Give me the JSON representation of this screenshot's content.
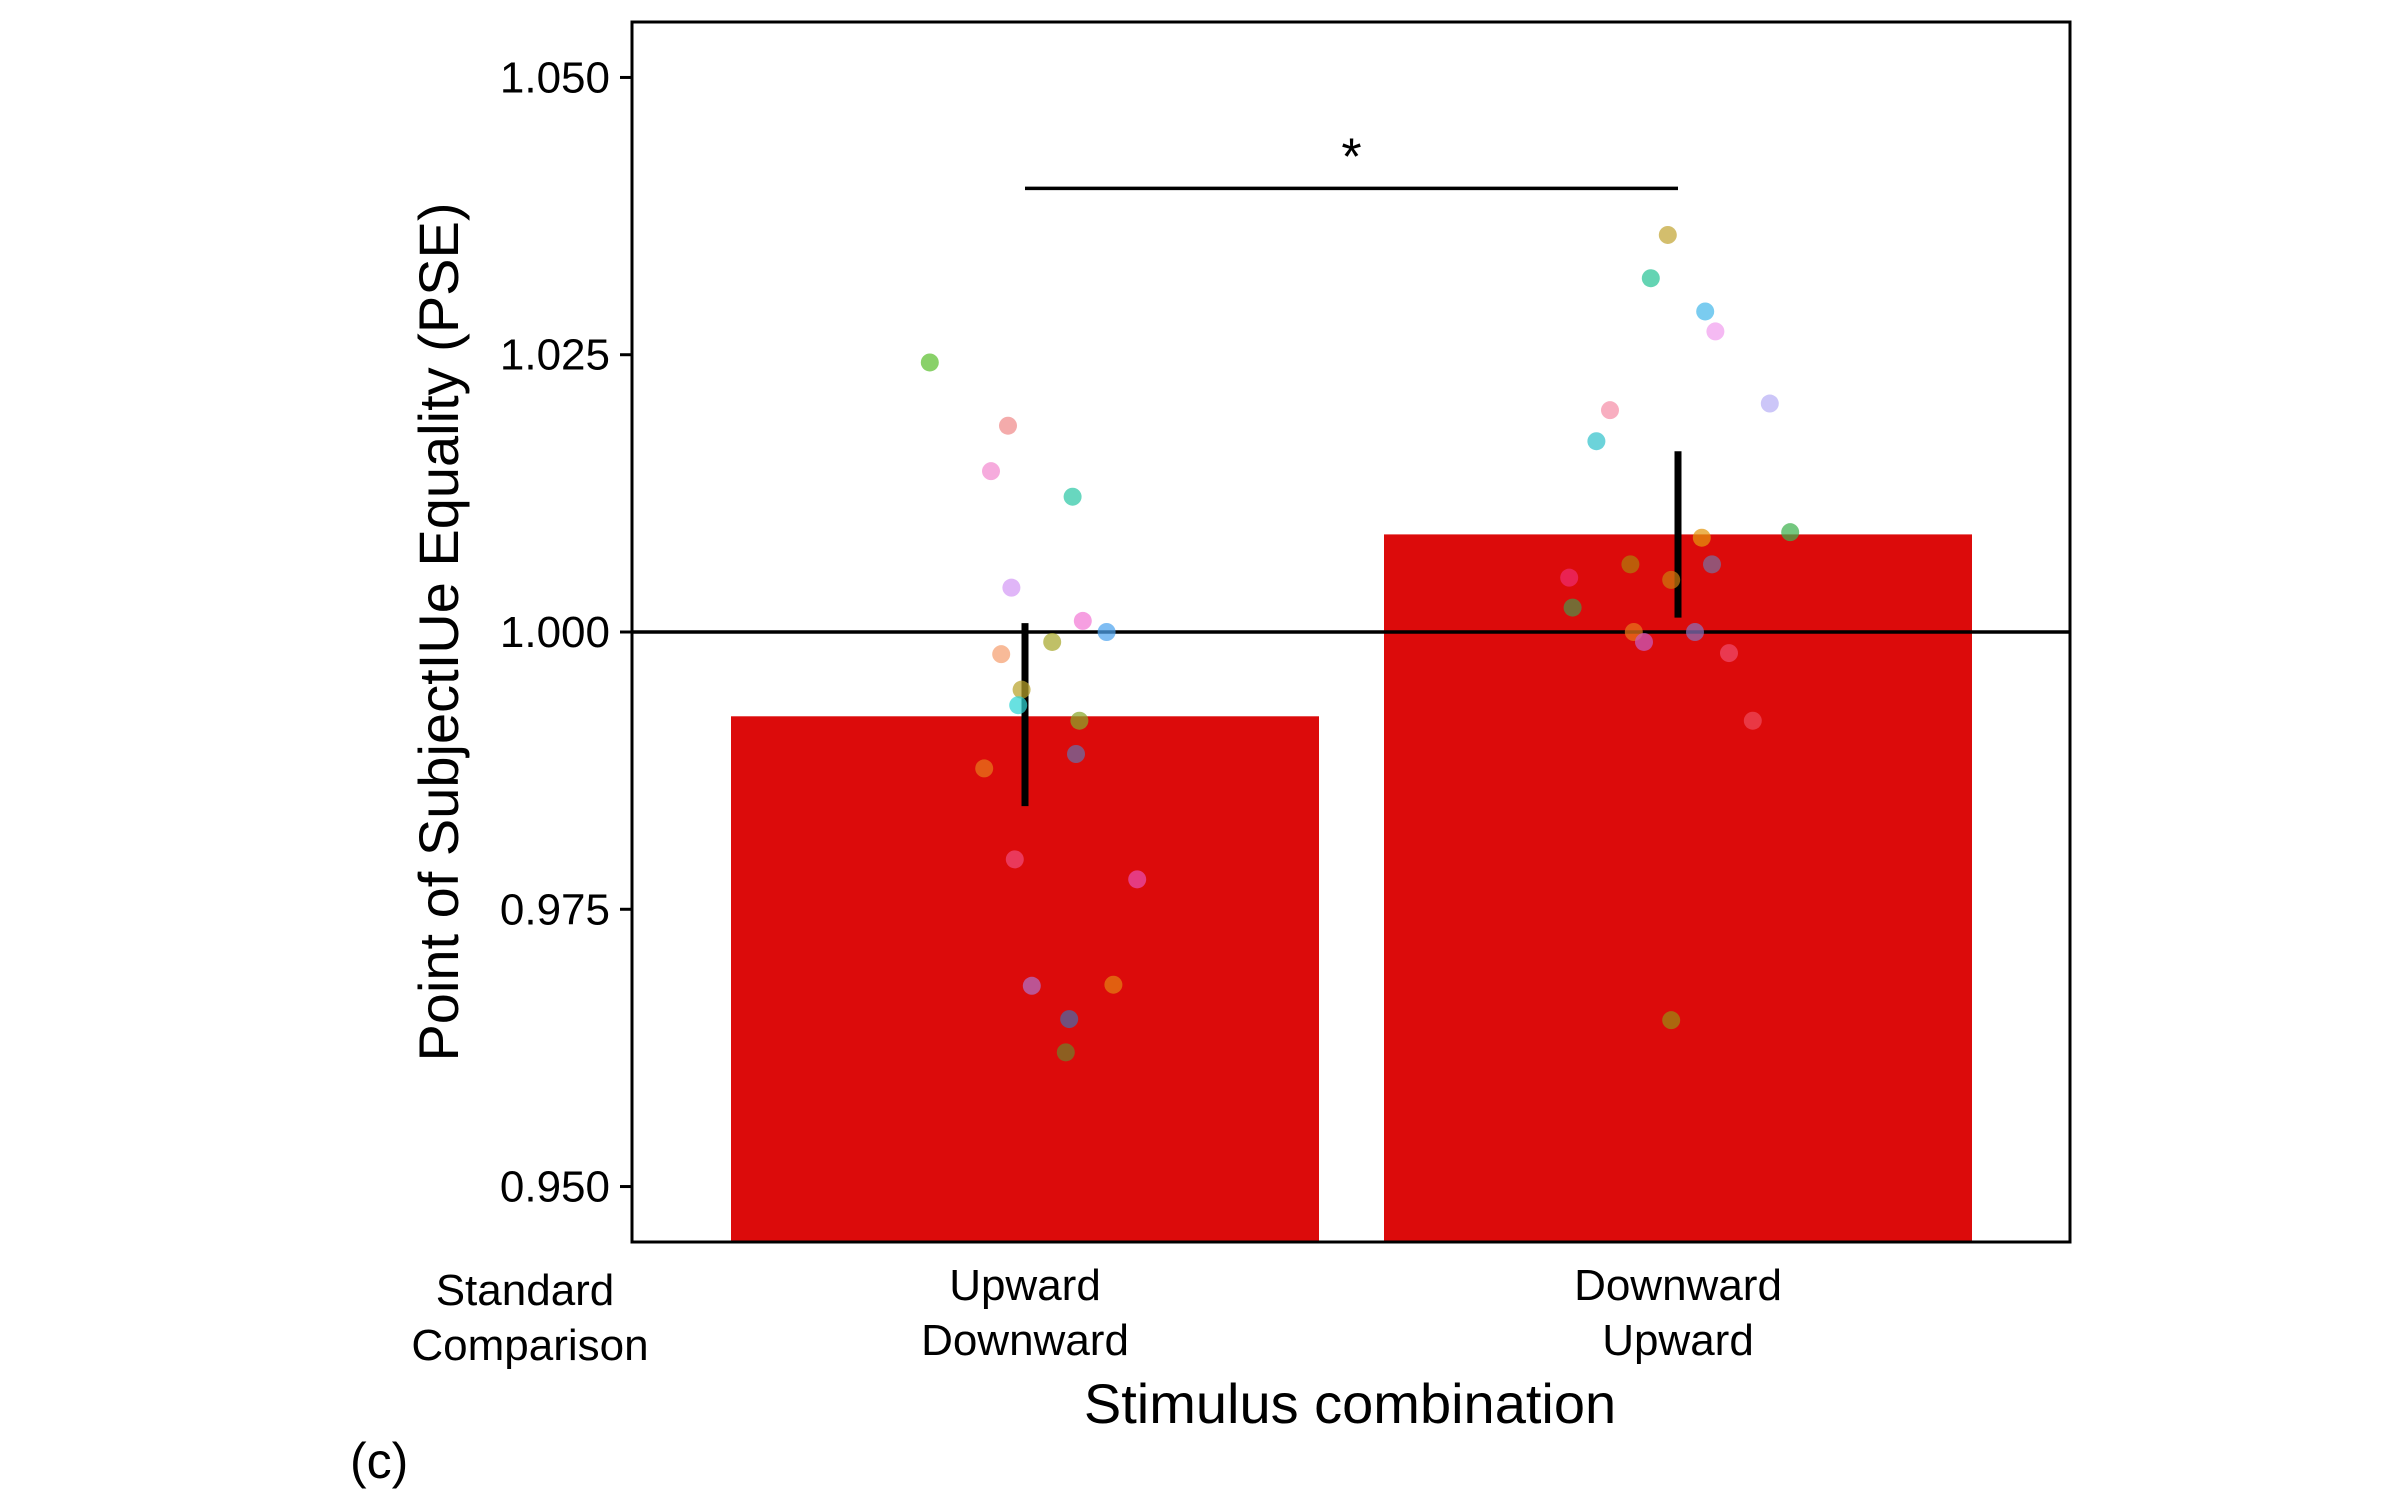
{
  "chart_data": {
    "type": "bar",
    "title": "",
    "xlabel": "Stimulus combination",
    "ylabel": "Point of SubjectIUe Equality (PSE)",
    "ylim": [
      0.945,
      1.055
    ],
    "yticks": [
      "0.950",
      "0.975",
      "1.000",
      "1.025",
      "1.050"
    ],
    "reference_line": 1.0,
    "row_labels": [
      "Standard",
      "Comparison"
    ],
    "categories": [
      {
        "line1": "Upward",
        "line2": "Downward"
      },
      {
        "line1": "Downward",
        "line2": "Upward"
      }
    ],
    "bar_color": "#dc0b0b",
    "values": [
      0.9924,
      1.0088
    ],
    "error_bars": [
      {
        "low": 0.9843,
        "high": 1.0008
      },
      {
        "low": 1.0013,
        "high": 1.0163
      }
    ],
    "significance": {
      "label": "*",
      "y": 1.04,
      "between": [
        0,
        1
      ]
    },
    "panel_label": "(c)",
    "points": [
      [
        {
          "dx": -0.28,
          "y": 1.0243,
          "color": "#5bbf2f"
        },
        {
          "dx": -0.05,
          "y": 1.0186,
          "color": "#f08a8a"
        },
        {
          "dx": -0.1,
          "y": 1.0145,
          "color": "#f38ad0"
        },
        {
          "dx": 0.14,
          "y": 1.0122,
          "color": "#2ec7a6"
        },
        {
          "dx": -0.04,
          "y": 1.004,
          "color": "#d49af5"
        },
        {
          "dx": 0.17,
          "y": 1.001,
          "color": "#f37ad6"
        },
        {
          "dx": 0.24,
          "y": 1.0,
          "color": "#4ea4ee"
        },
        {
          "dx": 0.08,
          "y": 0.9991,
          "color": "#a7a72d"
        },
        {
          "dx": -0.07,
          "y": 0.998,
          "color": "#f5a070"
        },
        {
          "dx": -0.01,
          "y": 0.9948,
          "color": "#b8a22a"
        },
        {
          "dx": -0.02,
          "y": 0.9934,
          "color": "#2ed6d6"
        },
        {
          "dx": 0.16,
          "y": 0.992,
          "color": "#89a828"
        },
        {
          "dx": 0.15,
          "y": 0.989,
          "color": "#6a6fa8"
        },
        {
          "dx": -0.12,
          "y": 0.9877,
          "color": "#e8781a"
        },
        {
          "dx": -0.03,
          "y": 0.9795,
          "color": "#f04b7a"
        },
        {
          "dx": 0.33,
          "y": 0.9777,
          "color": "#e94dae"
        },
        {
          "dx": 0.02,
          "y": 0.9681,
          "color": "#b070c8"
        },
        {
          "dx": 0.26,
          "y": 0.9682,
          "color": "#e37f12"
        },
        {
          "dx": 0.13,
          "y": 0.9651,
          "color": "#4a6aa8"
        },
        {
          "dx": 0.12,
          "y": 0.9621,
          "color": "#6f7f2a"
        }
      ],
      [
        {
          "dx": -0.03,
          "y": 1.0358,
          "color": "#c2a535"
        },
        {
          "dx": -0.08,
          "y": 1.0319,
          "color": "#28c495"
        },
        {
          "dx": 0.08,
          "y": 1.0289,
          "color": "#47b8ea"
        },
        {
          "dx": 0.11,
          "y": 1.0271,
          "color": "#f1a0ee"
        },
        {
          "dx": 0.27,
          "y": 1.0206,
          "color": "#b9b0f5"
        },
        {
          "dx": -0.2,
          "y": 1.02,
          "color": "#f58fa7"
        },
        {
          "dx": -0.24,
          "y": 1.0172,
          "color": "#33c2cc"
        },
        {
          "dx": 0.33,
          "y": 1.009,
          "color": "#3fb24d"
        },
        {
          "dx": 0.07,
          "y": 1.0085,
          "color": "#e3960d"
        },
        {
          "dx": -0.14,
          "y": 1.0061,
          "color": "#b07d0a"
        },
        {
          "dx": 0.1,
          "y": 1.0061,
          "color": "#7a6f9c"
        },
        {
          "dx": -0.32,
          "y": 1.0049,
          "color": "#ee2b6d"
        },
        {
          "dx": -0.02,
          "y": 1.0047,
          "color": "#cc7a0d"
        },
        {
          "dx": -0.31,
          "y": 1.0022,
          "color": "#4f9045"
        },
        {
          "dx": -0.13,
          "y": 1.0,
          "color": "#e8761a"
        },
        {
          "dx": 0.05,
          "y": 1.0,
          "color": "#8a70b8"
        },
        {
          "dx": -0.1,
          "y": 0.9991,
          "color": "#c75bbf"
        },
        {
          "dx": 0.15,
          "y": 0.9981,
          "color": "#f04b6b"
        },
        {
          "dx": 0.22,
          "y": 0.992,
          "color": "#ee4a5a"
        },
        {
          "dx": -0.02,
          "y": 0.965,
          "color": "#9a8a10"
        }
      ]
    ]
  }
}
